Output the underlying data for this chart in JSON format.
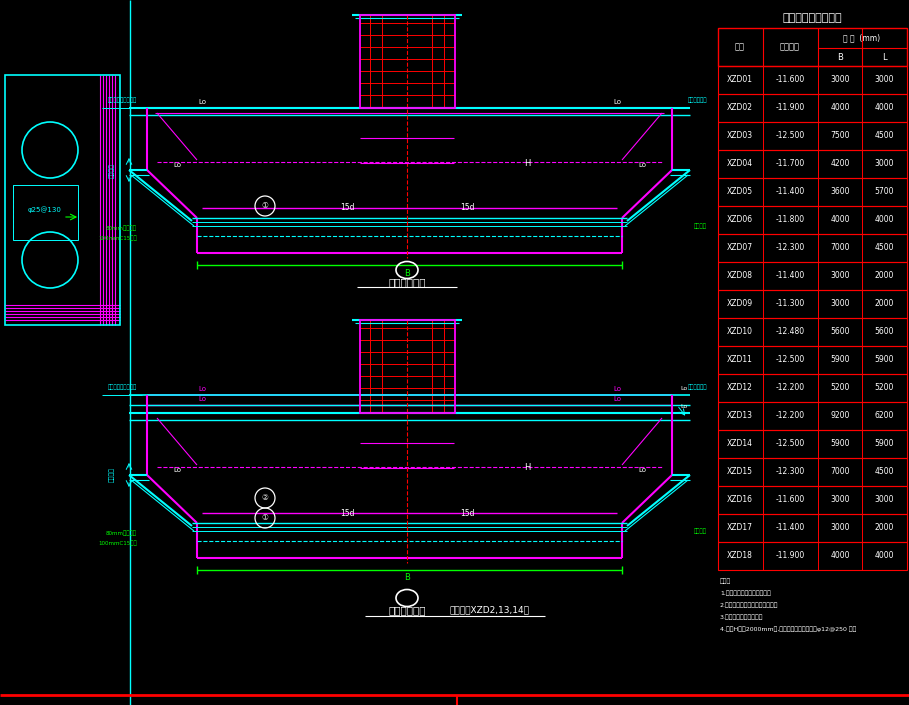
{
  "bg_color": "#000000",
  "table_title": "下柱墩尺寸及配筋表",
  "table_data": [
    [
      "XZD01",
      "-11.600",
      "3000",
      "3000"
    ],
    [
      "XZD02",
      "-11.900",
      "4000",
      "4000"
    ],
    [
      "XZD03",
      "-12.500",
      "7500",
      "4500"
    ],
    [
      "XZD04",
      "-11.700",
      "4200",
      "3000"
    ],
    [
      "XZD05",
      "-11.400",
      "3600",
      "5700"
    ],
    [
      "XZD06",
      "-11.800",
      "4000",
      "4000"
    ],
    [
      "XZD07",
      "-12.300",
      "7000",
      "4500"
    ],
    [
      "XZD08",
      "-11.400",
      "3000",
      "2000"
    ],
    [
      "XZD09",
      "-11.300",
      "3000",
      "2000"
    ],
    [
      "XZD10",
      "-12.480",
      "5600",
      "5600"
    ],
    [
      "XZD11",
      "-12.500",
      "5900",
      "5900"
    ],
    [
      "XZD12",
      "-12.200",
      "5200",
      "5200"
    ],
    [
      "XZD13",
      "-12.200",
      "9200",
      "6200"
    ],
    [
      "XZD14",
      "-12.500",
      "5900",
      "5900"
    ],
    [
      "XZD15",
      "-12.300",
      "7000",
      "4500"
    ],
    [
      "XZD16",
      "-11.600",
      "3000",
      "3000"
    ],
    [
      "XZD17",
      "-11.400",
      "3000",
      "2000"
    ],
    [
      "XZD18",
      "-11.900",
      "4000",
      "4000"
    ]
  ],
  "notes": [
    "说明：",
    "1.表示剩下柱墩厚由中布置。",
    "2.未注明钢筋间距按照底本钢筋。",
    "3.柱墩明细钢筋见平面。",
    "4.墩厚H大于2000mm时,另在墩厚中间附加设置φ12@250 钢筋"
  ],
  "C": "#00FFFF",
  "M": "#FF00FF",
  "G": "#00FF00",
  "R": "#FF0000",
  "W": "#FFFFFF",
  "DG": "#006400",
  "DB": "#0000CD"
}
